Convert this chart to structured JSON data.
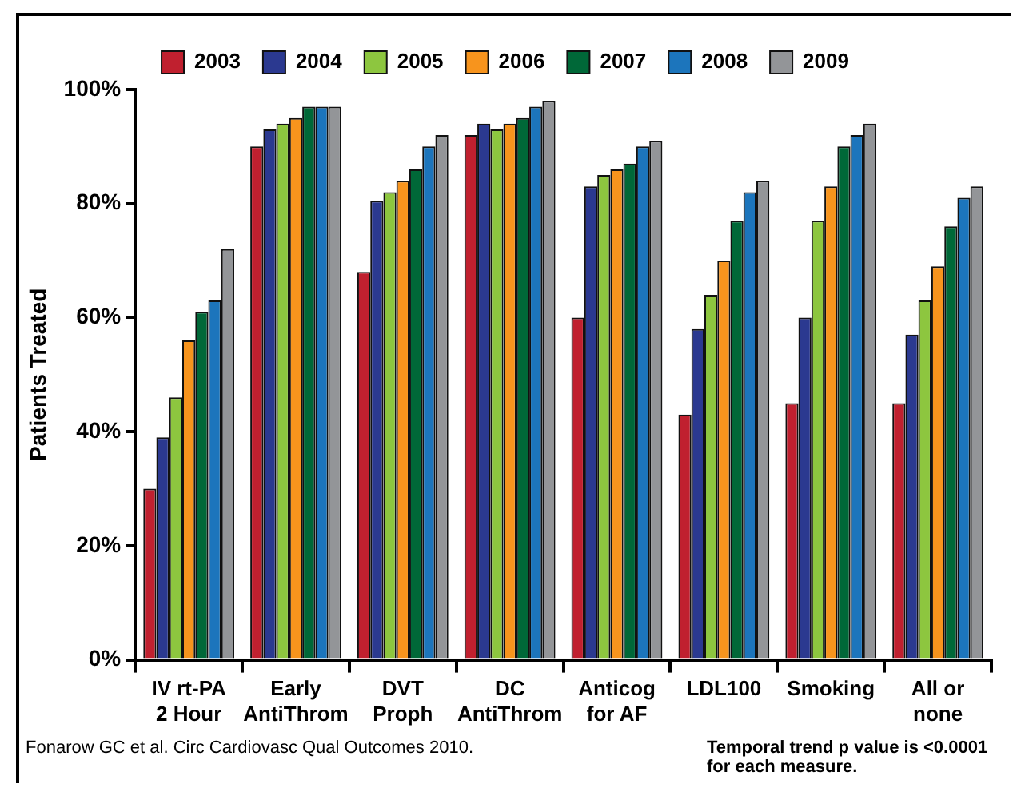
{
  "chart_data": {
    "type": "bar",
    "ylabel": "Patients Treated",
    "categories": [
      "IV rt-PA\n2 Hour",
      "Early\nAntiThrom",
      "DVT\nProph",
      "DC\nAntiThrom",
      "Anticog\nfor AF",
      "LDL100",
      "Smoking",
      "All or\nnone"
    ],
    "series": [
      {
        "name": "2003",
        "color": "#c0202f",
        "values": [
          30,
          90,
          68,
          92,
          60,
          43,
          45,
          45
        ]
      },
      {
        "name": "2004",
        "color": "#2b3990",
        "values": [
          39,
          93,
          80.5,
          94,
          83,
          58,
          60,
          57
        ]
      },
      {
        "name": "2005",
        "color": "#8dc63f",
        "values": [
          46,
          94,
          82,
          93,
          85,
          64,
          77,
          63
        ]
      },
      {
        "name": "2006",
        "color": "#f7941d",
        "values": [
          56,
          95,
          84,
          94,
          86,
          70,
          83,
          69
        ]
      },
      {
        "name": "2007",
        "color": "#006838",
        "values": [
          61,
          97,
          86,
          95,
          87,
          77,
          90,
          76
        ]
      },
      {
        "name": "2008",
        "color": "#1c75bc",
        "values": [
          63,
          97,
          90,
          97,
          90,
          82,
          92,
          81
        ]
      },
      {
        "name": "2009",
        "color": "#939598",
        "values": [
          72,
          97,
          92,
          98,
          91,
          84,
          94,
          83
        ]
      }
    ],
    "ylim": [
      0,
      100
    ],
    "yticks": [
      {
        "value": 0,
        "label": "0%"
      },
      {
        "value": 20,
        "label": "20%"
      },
      {
        "value": 40,
        "label": "40%"
      },
      {
        "value": 60,
        "label": "60%"
      },
      {
        "value": 80,
        "label": "80%"
      },
      {
        "value": 100,
        "label": "100%"
      }
    ],
    "grid": false,
    "legend": "top",
    "annotations": [
      "Fonarow GC et al. Circ Cardiovasc Qual Outcomes 2010.",
      "Temporal trend p value is <0.0001 for each measure."
    ]
  }
}
